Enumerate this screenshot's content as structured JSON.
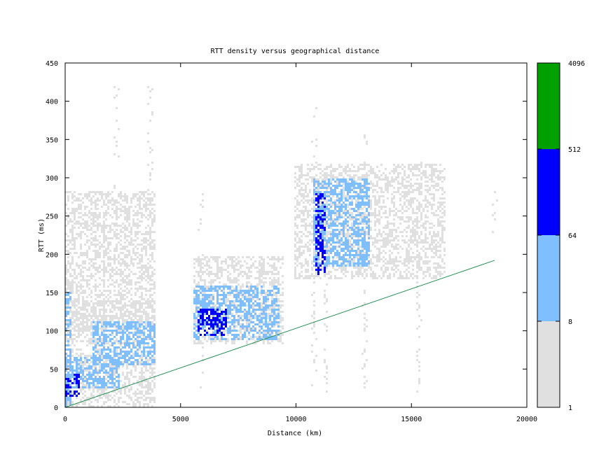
{
  "chart_data": {
    "type": "heatmap",
    "title": "RTT density versus geographical distance",
    "xlabel": "Distance (km)",
    "ylabel": "RTT (ms)",
    "xlim": [
      0,
      20000
    ],
    "ylim": [
      0,
      450
    ],
    "x_ticks": [
      "0",
      "5000",
      "10000",
      "15000",
      "20000"
    ],
    "y_ticks": [
      "0",
      "50",
      "100",
      "150",
      "200",
      "250",
      "300",
      "350",
      "400",
      "450"
    ],
    "x_tick_values": [
      0,
      5000,
      10000,
      15000,
      20000
    ],
    "y_tick_values": [
      0,
      50,
      100,
      150,
      200,
      250,
      300,
      350,
      400,
      450
    ],
    "colorbar": {
      "scale": "log",
      "ticks": [
        "1",
        "8",
        "64",
        "512",
        "4096"
      ],
      "tick_values": [
        1,
        8,
        64,
        512,
        4096
      ],
      "bands": [
        {
          "from": 1,
          "to": 8,
          "color": "#e0e0e0"
        },
        {
          "from": 8,
          "to": 64,
          "color": "#80bfff"
        },
        {
          "from": 64,
          "to": 512,
          "color": "#0000ff"
        },
        {
          "from": 512,
          "to": 4096,
          "color": "#00a000"
        }
      ]
    },
    "line": {
      "color": "#1e8f4e",
      "x": [
        0,
        18600
      ],
      "y": [
        0,
        192
      ]
    },
    "regions": [
      {
        "x": [
          0,
          4000
        ],
        "y": [
          0,
          280
        ],
        "level": 1
      },
      {
        "x": [
          0,
          3900
        ],
        "y": [
          100,
          140
        ],
        "level": 1
      },
      {
        "x": [
          5600,
          9500
        ],
        "y": [
          85,
          200
        ],
        "level": 1
      },
      {
        "x": [
          10000,
          16500
        ],
        "y": [
          170,
          320
        ],
        "level": 1
      },
      {
        "x": [
          0,
          200
        ],
        "y": [
          0,
          150
        ],
        "level": 2
      },
      {
        "x": [
          0,
          2400
        ],
        "y": [
          25,
          65
        ],
        "level": 2
      },
      {
        "x": [
          1200,
          3900
        ],
        "y": [
          55,
          110
        ],
        "level": 2
      },
      {
        "x": [
          5600,
          9300
        ],
        "y": [
          90,
          160
        ],
        "level": 2
      },
      {
        "x": [
          10800,
          13200
        ],
        "y": [
          185,
          300
        ],
        "level": 2
      },
      {
        "x": [
          0,
          600
        ],
        "y": [
          15,
          45
        ],
        "level": 3
      },
      {
        "x": [
          5800,
          7000
        ],
        "y": [
          95,
          130
        ],
        "level": 3
      },
      {
        "x": [
          10900,
          11300
        ],
        "y": [
          175,
          280
        ],
        "level": 3
      }
    ],
    "columns": [
      {
        "x": 2200,
        "y": [
          20,
          420
        ],
        "level": 1
      },
      {
        "x": 3700,
        "y": [
          20,
          425
        ],
        "level": 1
      },
      {
        "x": 5900,
        "y": [
          20,
          300
        ],
        "level": 1
      },
      {
        "x": 10800,
        "y": [
          25,
          395
        ],
        "level": 1
      },
      {
        "x": 11300,
        "y": [
          20,
          310
        ],
        "level": 1
      },
      {
        "x": 13000,
        "y": [
          20,
          360
        ],
        "level": 1
      },
      {
        "x": 15300,
        "y": [
          20,
          320
        ],
        "level": 1
      },
      {
        "x": 18600,
        "y": [
          230,
          290
        ],
        "level": 1
      }
    ]
  }
}
